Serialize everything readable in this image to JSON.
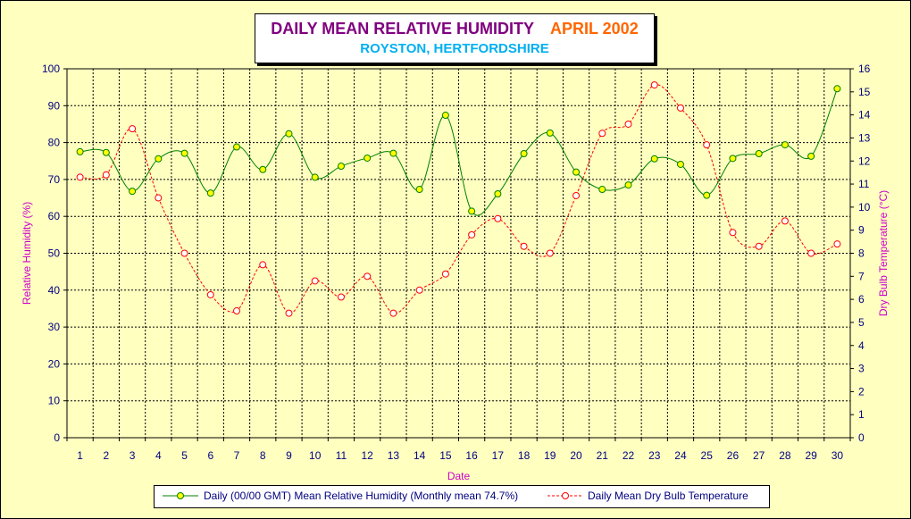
{
  "chart_data": {
    "type": "line",
    "title": "DAILY MEAN RELATIVE HUMIDITY",
    "title_date": "APRIL 2002",
    "subtitle": "ROYSTON, HERTFORDSHIRE",
    "xlabel": "Date",
    "ylabel_left": "Relative Humidity (%)",
    "ylabel_right": "Dry Bulb Temperature (°C)",
    "x": [
      1,
      2,
      3,
      4,
      5,
      6,
      7,
      8,
      9,
      10,
      11,
      12,
      13,
      14,
      15,
      16,
      17,
      18,
      19,
      20,
      21,
      22,
      23,
      24,
      25,
      26,
      27,
      28,
      29,
      30
    ],
    "ylim_left": [
      0,
      100
    ],
    "yticks_left": [
      0,
      10,
      20,
      30,
      40,
      50,
      60,
      70,
      80,
      90,
      100
    ],
    "ylim_right": [
      0,
      16
    ],
    "yticks_right": [
      0,
      1,
      2,
      3,
      4,
      5,
      6,
      7,
      8,
      9,
      10,
      11,
      12,
      13,
      14,
      15,
      16
    ],
    "grid": true,
    "legend_position": "bottom",
    "series": [
      {
        "name": "Daily (00/00 GMT) Mean Relative Humidity (Monthly mean 74.7%)",
        "axis": "left",
        "color": "#008000",
        "marker_fill": "#ffff00",
        "style": "solid",
        "values": [
          77.5,
          77.3,
          66.8,
          75.6,
          77.1,
          66.3,
          78.8,
          72.7,
          82.4,
          70.6,
          73.6,
          75.8,
          77.1,
          67.3,
          87.4,
          61.4,
          66.1,
          77.0,
          82.6,
          72.0,
          67.3,
          68.5,
          75.6,
          74.1,
          65.7,
          75.7,
          77.0,
          79.4,
          76.3,
          94.6
        ]
      },
      {
        "name": "Daily Mean Dry Bulb Temperature",
        "axis": "right",
        "color": "#ff0000",
        "marker_fill": "#ffffff",
        "style": "dashed",
        "values": [
          11.3,
          11.4,
          13.4,
          10.4,
          8.0,
          6.2,
          5.5,
          7.5,
          5.4,
          6.8,
          6.1,
          7.0,
          5.4,
          6.4,
          7.1,
          8.8,
          9.5,
          8.3,
          8.0,
          10.5,
          13.2,
          13.6,
          15.3,
          14.3,
          12.7,
          8.9,
          8.3,
          9.4,
          8.0,
          8.4
        ]
      }
    ]
  }
}
